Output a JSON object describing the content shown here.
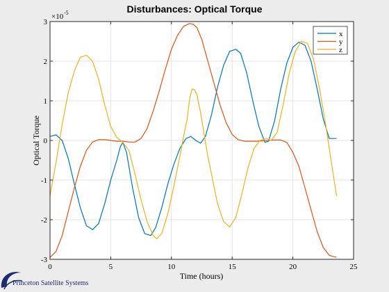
{
  "chart_data": {
    "type": "line",
    "title": "Disturbances: Optical Torque",
    "xlabel": "Time (hours)",
    "ylabel": "Optical Torque",
    "exponent_label": "×10",
    "exponent_power": "-5",
    "xlim": [
      0,
      25
    ],
    "ylim": [
      -3,
      3
    ],
    "xticks": [
      0,
      5,
      10,
      15,
      20,
      25
    ],
    "yticks": [
      -3,
      -2,
      -1,
      0,
      1,
      2,
      3
    ],
    "grid": true,
    "legend_position": "top-right",
    "series": [
      {
        "name": "x",
        "color": "#0072BD",
        "x": [
          0.0,
          0.5,
          1.0,
          1.5,
          2.0,
          2.5,
          3.0,
          3.5,
          4.0,
          4.5,
          5.0,
          5.5,
          5.8,
          6.0,
          6.3,
          6.8,
          7.3,
          7.8,
          8.3,
          8.7,
          9.2,
          9.7,
          10.2,
          10.7,
          11.2,
          11.6,
          12.0,
          12.4,
          12.8,
          13.3,
          13.8,
          14.3,
          14.8,
          15.3,
          15.7,
          16.2,
          16.7,
          17.2,
          17.7,
          18.0,
          18.5,
          19.0,
          19.5,
          20.0,
          20.5,
          21.0,
          21.5,
          22.0,
          22.5,
          23.0,
          23.6
        ],
        "values": [
          0.1,
          0.14,
          0.0,
          -0.45,
          -1.1,
          -1.7,
          -2.15,
          -2.25,
          -2.1,
          -1.6,
          -1.0,
          -0.5,
          -0.15,
          -0.05,
          -0.3,
          -1.2,
          -1.95,
          -2.35,
          -2.4,
          -2.2,
          -1.7,
          -1.1,
          -0.6,
          -0.2,
          0.05,
          0.1,
          0.0,
          -0.07,
          0.1,
          0.65,
          1.35,
          1.9,
          2.25,
          2.3,
          2.2,
          1.7,
          1.0,
          0.35,
          -0.05,
          -0.02,
          0.5,
          1.3,
          1.95,
          2.35,
          2.48,
          2.4,
          2.0,
          1.3,
          0.55,
          0.05,
          0.05
        ]
      },
      {
        "name": "y",
        "color": "#D95319",
        "x": [
          0.0,
          0.5,
          1.0,
          1.5,
          2.0,
          2.5,
          3.0,
          3.5,
          4.0,
          4.5,
          5.0,
          5.5,
          6.0,
          6.5,
          7.0,
          7.5,
          8.0,
          8.5,
          9.0,
          9.5,
          10.0,
          10.5,
          11.0,
          11.5,
          11.8,
          12.1,
          12.5,
          13.0,
          13.5,
          14.0,
          14.5,
          15.0,
          15.5,
          16.0,
          16.5,
          17.0,
          17.5,
          18.0,
          18.5,
          19.0,
          19.5,
          20.0,
          20.5,
          21.0,
          21.5,
          22.0,
          22.5,
          23.0,
          23.6
        ],
        "values": [
          -2.95,
          -2.8,
          -2.4,
          -1.8,
          -1.2,
          -0.65,
          -0.25,
          -0.04,
          0.02,
          0.02,
          0.0,
          -0.02,
          -0.02,
          -0.04,
          -0.04,
          0.05,
          0.3,
          0.75,
          1.25,
          1.8,
          2.3,
          2.65,
          2.88,
          2.95,
          2.93,
          2.85,
          2.55,
          2.0,
          1.45,
          0.9,
          0.45,
          0.15,
          0.02,
          -0.02,
          -0.02,
          -0.02,
          -0.01,
          0.0,
          0.01,
          0.01,
          -0.05,
          -0.3,
          -0.65,
          -1.2,
          -1.75,
          -2.3,
          -2.7,
          -2.9,
          -2.95
        ]
      },
      {
        "name": "z",
        "color": "#EDB120",
        "x": [
          0.0,
          0.5,
          1.0,
          1.5,
          2.0,
          2.5,
          3.0,
          3.5,
          4.0,
          4.5,
          5.0,
          5.5,
          6.0,
          6.5,
          7.0,
          7.5,
          8.0,
          8.5,
          8.8,
          9.2,
          9.7,
          10.2,
          10.7,
          11.0,
          11.3,
          11.5,
          11.7,
          11.9,
          12.1,
          12.4,
          12.7,
          13.0,
          13.4,
          13.8,
          14.3,
          14.8,
          15.3,
          15.8,
          16.3,
          16.8,
          17.3,
          17.8,
          18.2,
          18.7,
          19.2,
          19.7,
          20.2,
          20.7,
          21.2,
          21.7,
          22.2,
          22.7,
          23.2,
          23.6
        ],
        "values": [
          -1.4,
          -0.55,
          0.4,
          1.2,
          1.75,
          2.1,
          2.15,
          2.0,
          1.55,
          0.9,
          0.35,
          0.08,
          -0.05,
          -0.25,
          -0.85,
          -1.5,
          -2.05,
          -2.4,
          -2.48,
          -2.35,
          -1.85,
          -1.15,
          -0.4,
          0.1,
          0.55,
          1.05,
          1.3,
          1.28,
          1.15,
          0.7,
          0.15,
          -0.4,
          -1.0,
          -1.6,
          -2.05,
          -2.18,
          -1.95,
          -1.35,
          -0.7,
          -0.2,
          0.0,
          0.05,
          0.0,
          0.2,
          0.9,
          1.7,
          2.25,
          2.5,
          2.45,
          2.05,
          1.3,
          0.4,
          -0.6,
          -1.4
        ]
      }
    ]
  },
  "footer": {
    "logo_text": "Princeton Satellite Systems"
  }
}
